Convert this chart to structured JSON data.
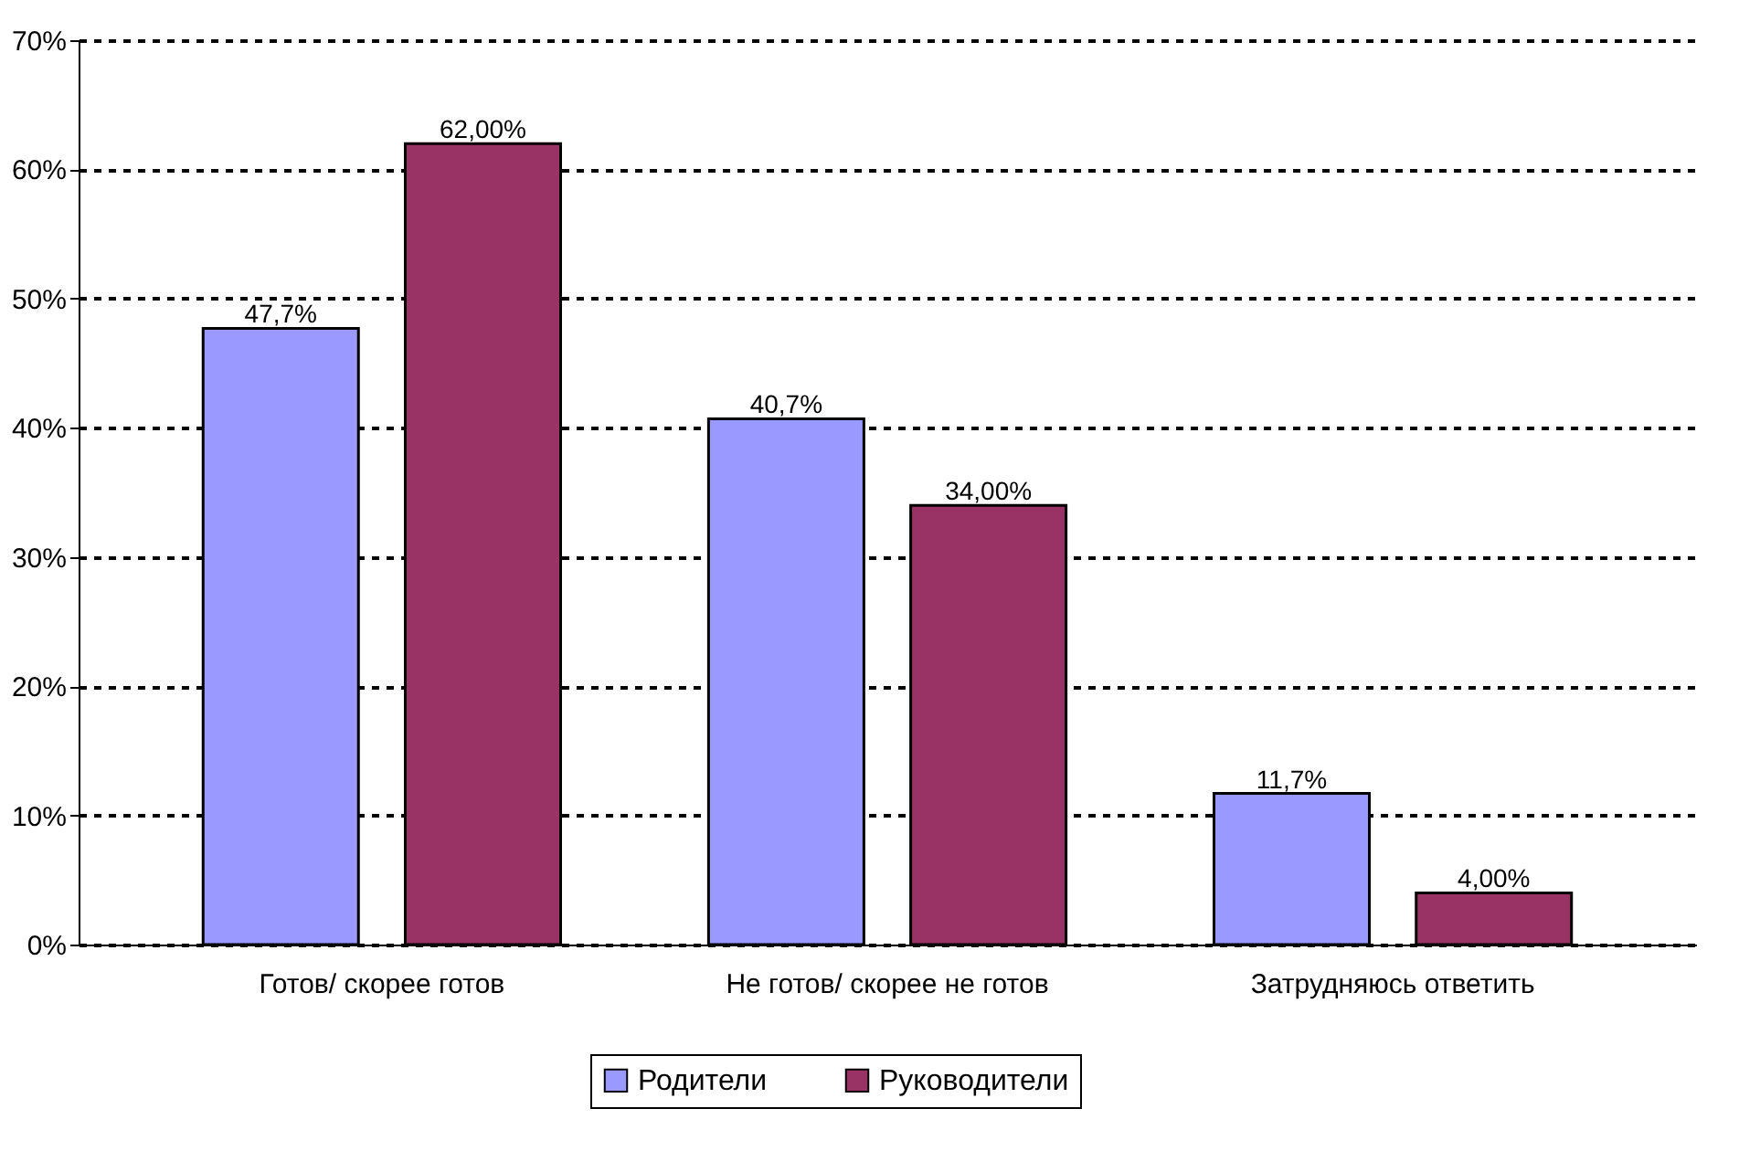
{
  "chart_data": {
    "type": "bar",
    "categories": [
      "Готов/ скорее готов",
      "Не готов/ скорее не готов",
      "Затрудняюсь ответить"
    ],
    "series": [
      {
        "name": "Родители",
        "color": "#9999ff",
        "values": [
          47.7,
          40.7,
          11.7
        ],
        "value_labels": [
          "47,7%",
          "40,7%",
          "11,7%"
        ]
      },
      {
        "name": "Руководители",
        "color": "#993366",
        "values": [
          62,
          34,
          4
        ],
        "value_labels": [
          "62,00%",
          "34,00%",
          "4,00%"
        ]
      }
    ],
    "ylim": [
      0,
      70
    ],
    "yticks": [
      {
        "value": 0,
        "label": "0%"
      },
      {
        "value": 10,
        "label": "10%"
      },
      {
        "value": 20,
        "label": "20%"
      },
      {
        "value": 30,
        "label": "30%"
      },
      {
        "value": 40,
        "label": "40%"
      },
      {
        "value": 50,
        "label": "50%"
      },
      {
        "value": 60,
        "label": "60%"
      },
      {
        "value": 70,
        "label": "70%"
      }
    ],
    "grid": "y",
    "legend": "bottom"
  }
}
